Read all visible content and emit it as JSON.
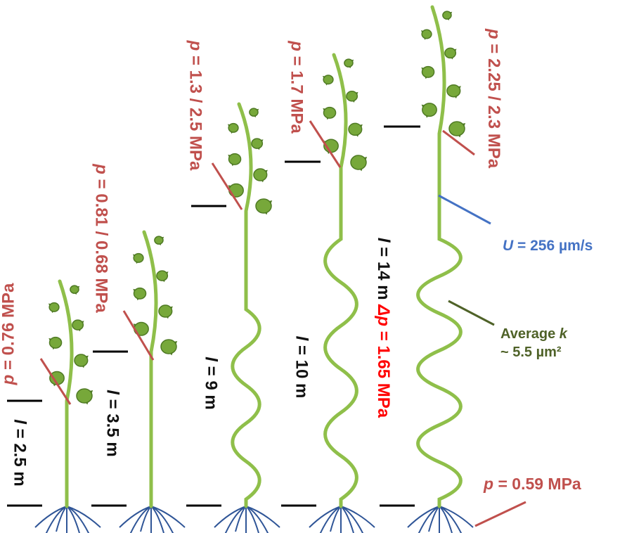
{
  "colors": {
    "stem": "#8fbf4a",
    "leaf": "#77a83a",
    "leaf_edge": "#4f7a24",
    "root": "#2f5597",
    "pressure": "#c0504d",
    "height_tick": "#000000",
    "velocity": "#4472c4",
    "permeability": "#4f6228",
    "delta_p": "#ff0000"
  },
  "plants": [
    {
      "pressure": {
        "symbol": "p",
        "text": " = 0.76 MPa"
      },
      "length": {
        "symbol": "l",
        "text": " = 2.5 m"
      }
    },
    {
      "pressure": {
        "symbol": "p",
        "text": " = 0.81 / 0.68 MPa"
      },
      "length": {
        "symbol": "l",
        "text": " = 3.5 m"
      }
    },
    {
      "pressure": {
        "symbol": "p",
        "text": " = 1.3 / 2.5 MPa"
      },
      "length": {
        "symbol": "l",
        "text": " = 9 m"
      }
    },
    {
      "pressure": {
        "symbol": "p",
        "text": " = 1.7 MPa"
      },
      "length": {
        "symbol": "l",
        "text": " = 10 m"
      }
    },
    {
      "pressure": {
        "symbol": "p",
        "text": " = 2.25 / 2.3 MPa"
      },
      "length": {
        "symbol": "l",
        "text": " = 14 m "
      },
      "delta_p": {
        "symbol": "Δp",
        "text": " = 1.65 MPa"
      }
    }
  ],
  "velocity": {
    "symbol": "U",
    "text": " = 256 µm/s"
  },
  "permeability": {
    "line1": "Average ",
    "symbol": "k",
    "line2": "~ 5.5 µm²"
  },
  "base_pressure": {
    "symbol": "p",
    "text": " = 0.59 MPa"
  }
}
